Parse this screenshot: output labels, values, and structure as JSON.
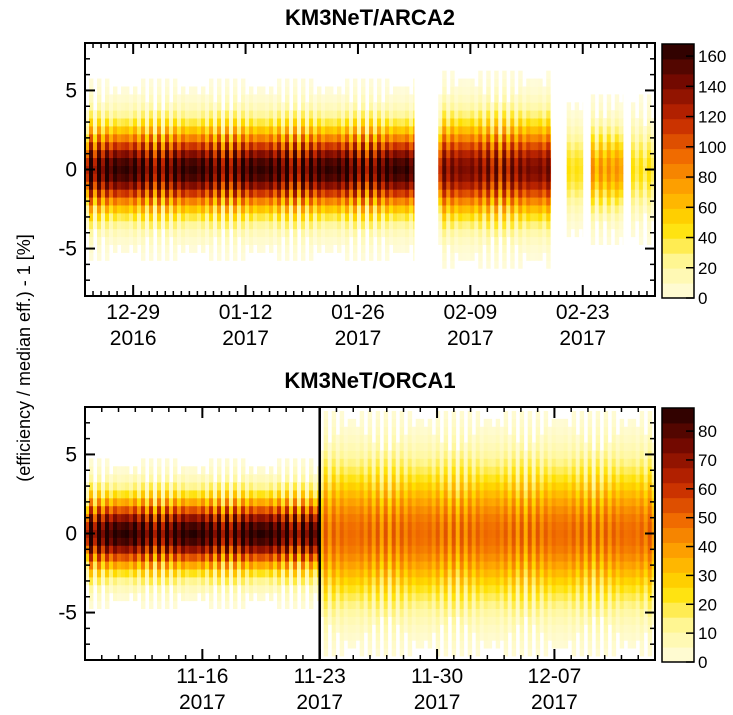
{
  "ylabel": "(efficiency / median eff.) - 1 [%]",
  "chart_data": [
    {
      "type": "heatmap",
      "title": "KM3NeT/ARCA2",
      "ylabel": "(efficiency / median eff.) - 1 [%]",
      "ylim": [
        -8,
        8
      ],
      "y_ticks": [
        {
          "value": 5,
          "label": "5"
        },
        {
          "value": 0,
          "label": "0"
        },
        {
          "value": -5,
          "label": "-5"
        }
      ],
      "xlim": [
        "2016-12-23",
        "2017-03-04"
      ],
      "x_ticks": [
        {
          "date": "2016-12-29",
          "label": "12-29",
          "year": "2016"
        },
        {
          "date": "2017-01-12",
          "label": "01-12",
          "year": "2017"
        },
        {
          "date": "2017-01-26",
          "label": "01-26",
          "year": "2017"
        },
        {
          "date": "2017-02-09",
          "label": "02-09",
          "year": "2017"
        },
        {
          "date": "2017-02-23",
          "label": "02-23",
          "year": "2017"
        }
      ],
      "colorbar": {
        "min": 0,
        "max": 168,
        "ticks": [
          "0",
          "20",
          "40",
          "60",
          "80",
          "100",
          "120",
          "140",
          "160"
        ]
      },
      "data_segments": [
        {
          "start": "2016-12-23",
          "end": "2017-02-02",
          "peak": 150,
          "spread": 1.6
        },
        {
          "start": "2017-02-05",
          "end": "2017-02-19",
          "peak": 130,
          "spread": 1.8
        },
        {
          "start": "2017-02-21",
          "end": "2017-02-23",
          "peak": 40,
          "spread": 1.5
        },
        {
          "start": "2017-02-24",
          "end": "2017-02-28",
          "peak": 70,
          "spread": 1.5
        },
        {
          "start": "2017-03-01",
          "end": "2017-03-04",
          "peak": 40,
          "spread": 1.5
        }
      ]
    },
    {
      "type": "heatmap",
      "title": "KM3NeT/ORCA1",
      "ylabel": "(efficiency / median eff.) - 1 [%]",
      "ylim": [
        -8,
        8
      ],
      "y_ticks": [
        {
          "value": 5,
          "label": "5"
        },
        {
          "value": 0,
          "label": "0"
        },
        {
          "value": -5,
          "label": "-5"
        }
      ],
      "xlim": [
        "2017-11-09",
        "2017-12-13"
      ],
      "x_ticks": [
        {
          "date": "2017-11-16",
          "label": "11-16",
          "year": "2017"
        },
        {
          "date": "2017-11-23",
          "label": "11-23",
          "year": "2017"
        },
        {
          "date": "2017-11-30",
          "label": "11-30",
          "year": "2017"
        },
        {
          "date": "2017-12-07",
          "label": "12-07",
          "year": "2017"
        }
      ],
      "vertical_line": "2017-11-23",
      "colorbar": {
        "min": 0,
        "max": 88,
        "ticks": [
          "0",
          "10",
          "20",
          "30",
          "40",
          "50",
          "60",
          "70",
          "80"
        ]
      },
      "data_segments": [
        {
          "start": "2017-11-09",
          "end": "2017-11-23",
          "peak": 80,
          "spread": 1.4
        },
        {
          "start": "2017-11-23",
          "end": "2017-12-13",
          "peak": 45,
          "spread": 2.6
        }
      ]
    }
  ]
}
